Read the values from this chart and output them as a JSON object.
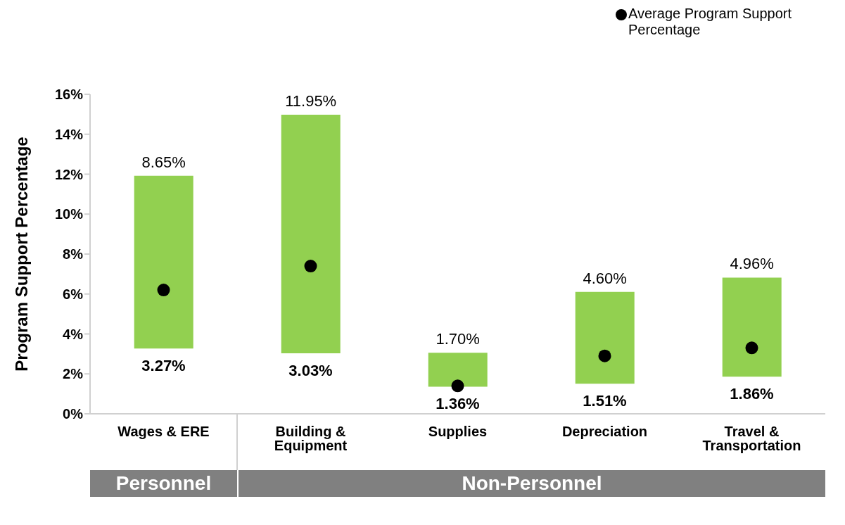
{
  "chart_data": {
    "type": "bar",
    "ylabel": "Program Support Percentage",
    "categories": [
      "Wages & ERE",
      "Building & Equipment",
      "Supplies",
      "Depreciation",
      "Travel & Transportation"
    ],
    "series": [
      {
        "type": "bar",
        "color": "#92d050",
        "base": [
          3.27,
          3.03,
          1.36,
          1.51,
          1.86
        ],
        "values": [
          8.65,
          11.95,
          1.7,
          4.6,
          4.96
        ],
        "value_labels": [
          "8.65%",
          "11.95%",
          "1.70%",
          "4.60%",
          "4.96%"
        ]
      },
      {
        "type": "scatter",
        "name": "Average Program Support Percentage",
        "color": "#000000",
        "marker": "circle",
        "x": [
          "Wages & ERE",
          "Building & Equipment",
          "Supplies",
          "Depreciation",
          "Travel & Transportation"
        ],
        "values": [
          6.2,
          7.4,
          1.4,
          2.9,
          3.3
        ]
      }
    ],
    "ylim": [
      0,
      16
    ],
    "yticks": [
      {
        "value": 0,
        "label": "0%"
      },
      {
        "value": 2,
        "label": "2%"
      },
      {
        "value": 4,
        "label": "4%"
      },
      {
        "value": 6,
        "label": "6%"
      },
      {
        "value": 8,
        "label": "8%"
      },
      {
        "value": 10,
        "label": "10%"
      },
      {
        "value": 12,
        "label": "12%"
      },
      {
        "value": 14,
        "label": "14%"
      },
      {
        "value": 16,
        "label": "16%"
      }
    ],
    "legend": "top right",
    "annotations": [
      {
        "text": "3.27%",
        "x": "Wages & ERE",
        "y": 3.27
      },
      {
        "text": "3.03%",
        "x": "Building & Equipment",
        "y": 3.03
      },
      {
        "text": "1.36%",
        "x": "Supplies",
        "y": 1.36
      },
      {
        "text": "1.51%",
        "x": "Depreciation",
        "y": 1.51
      },
      {
        "text": "1.86%",
        "x": "Travel & Transportation",
        "y": 1.86
      },
      "Personnel",
      "Non-Personnel"
    ]
  }
}
